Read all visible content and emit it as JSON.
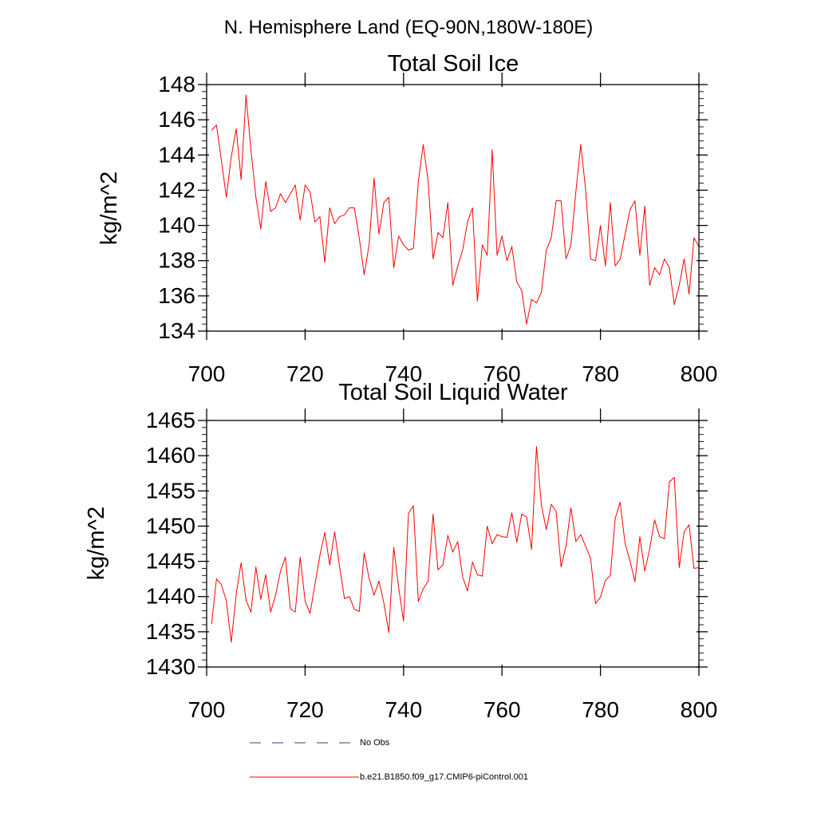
{
  "header": {
    "region_title": "N. Hemisphere Land (EQ-90N,180W-180E)"
  },
  "legend": {
    "obs_label": "No Obs",
    "model_label": "b.e21.B1850.f09_g17.CMIP6-piControl.001",
    "obs_color": "#3b3b8f",
    "model_color": "#ff0000"
  },
  "chart_data": [
    {
      "type": "line",
      "title": "Total Soil Ice",
      "xlabel": "",
      "ylabel": "kg/m^2",
      "xlim": [
        700,
        800
      ],
      "ylim": [
        134,
        148
      ],
      "xticks": [
        700,
        720,
        740,
        760,
        780,
        800
      ],
      "yticks": [
        134,
        136,
        138,
        140,
        142,
        144,
        146,
        148
      ],
      "series": [
        {
          "name": "b.e21.B1850.f09_g17.CMIP6-piControl.001",
          "color": "#ff0000",
          "x": [
            701,
            702,
            703,
            704,
            705,
            706,
            707,
            708,
            709,
            710,
            711,
            712,
            713,
            714,
            715,
            716,
            717,
            718,
            719,
            720,
            721,
            722,
            723,
            724,
            725,
            726,
            727,
            728,
            729,
            730,
            731,
            732,
            733,
            734,
            735,
            736,
            737,
            738,
            739,
            740,
            741,
            742,
            743,
            744,
            745,
            746,
            747,
            748,
            749,
            750,
            751,
            752,
            753,
            754,
            755,
            756,
            757,
            758,
            759,
            760,
            761,
            762,
            763,
            764,
            765,
            766,
            767,
            768,
            769,
            770,
            771,
            772,
            773,
            774,
            775,
            776,
            777,
            778,
            779,
            780,
            781,
            782,
            783,
            784,
            785,
            786,
            787,
            788,
            789,
            790,
            791,
            792,
            793,
            794,
            795,
            796,
            797,
            798,
            799,
            800
          ],
          "values": [
            145.4,
            145.7,
            143.7,
            141.6,
            143.9,
            145.5,
            142.6,
            147.4,
            144.3,
            141.6,
            139.8,
            142.5,
            140.8,
            141.0,
            141.8,
            141.3,
            141.8,
            142.3,
            140.3,
            142.3,
            141.9,
            140.2,
            140.5,
            137.9,
            141.0,
            140.1,
            140.5,
            140.6,
            141.0,
            141.0,
            139.3,
            137.2,
            138.9,
            142.7,
            139.5,
            141.3,
            141.6,
            137.6,
            139.4,
            138.9,
            138.6,
            138.7,
            142.5,
            144.6,
            142.5,
            138.1,
            139.6,
            139.3,
            141.3,
            136.6,
            137.7,
            138.6,
            140.2,
            141.0,
            135.7,
            138.9,
            138.3,
            144.3,
            138.3,
            139.4,
            138.0,
            138.8,
            136.8,
            136.3,
            134.4,
            135.8,
            135.6,
            136.2,
            138.6,
            139.3,
            141.4,
            141.4,
            138.1,
            138.9,
            141.9,
            144.6,
            142.0,
            138.1,
            138.0,
            140.0,
            137.7,
            141.3,
            137.7,
            138.1,
            139.5,
            140.9,
            141.4,
            138.3,
            141.1,
            136.6,
            137.6,
            137.2,
            138.1,
            137.6,
            135.5,
            136.6,
            138.1,
            136.1,
            139.3,
            138.8
          ]
        }
      ]
    },
    {
      "type": "line",
      "title": "Total Soil Liquid Water",
      "xlabel": "",
      "ylabel": "kg/m^2",
      "xlim": [
        700,
        800
      ],
      "ylim": [
        1430,
        1465
      ],
      "xticks": [
        700,
        720,
        740,
        760,
        780,
        800
      ],
      "yticks": [
        1430,
        1435,
        1440,
        1445,
        1450,
        1455,
        1460,
        1465
      ],
      "series": [
        {
          "name": "b.e21.B1850.f09_g17.CMIP6-piControl.001",
          "color": "#ff0000",
          "x": [
            701,
            702,
            703,
            704,
            705,
            706,
            707,
            708,
            709,
            710,
            711,
            712,
            713,
            714,
            715,
            716,
            717,
            718,
            719,
            720,
            721,
            722,
            723,
            724,
            725,
            726,
            727,
            728,
            729,
            730,
            731,
            732,
            733,
            734,
            735,
            736,
            737,
            738,
            739,
            740,
            741,
            742,
            743,
            744,
            745,
            746,
            747,
            748,
            749,
            750,
            751,
            752,
            753,
            754,
            755,
            756,
            757,
            758,
            759,
            760,
            761,
            762,
            763,
            764,
            765,
            766,
            767,
            768,
            769,
            770,
            771,
            772,
            773,
            774,
            775,
            776,
            777,
            778,
            779,
            780,
            781,
            782,
            783,
            784,
            785,
            786,
            787,
            788,
            789,
            790,
            791,
            792,
            793,
            794,
            795,
            796,
            797,
            798,
            799,
            800
          ],
          "values": [
            1436.1,
            1442.5,
            1441.7,
            1439.4,
            1433.5,
            1440.3,
            1444.8,
            1439.5,
            1437.8,
            1444.2,
            1439.6,
            1443.1,
            1437.8,
            1440.2,
            1443.6,
            1445.6,
            1438.3,
            1437.8,
            1445.6,
            1439.4,
            1437.6,
            1441.7,
            1445.8,
            1449.1,
            1444.5,
            1449.2,
            1444.3,
            1439.7,
            1440.0,
            1438.2,
            1437.9,
            1446.2,
            1442.6,
            1440.2,
            1442.2,
            1439.1,
            1434.9,
            1447.0,
            1441.3,
            1436.5,
            1451.8,
            1452.9,
            1439.3,
            1441.1,
            1442.2,
            1451.7,
            1443.8,
            1444.5,
            1448.7,
            1446.3,
            1447.8,
            1442.8,
            1440.8,
            1444.9,
            1443.1,
            1442.9,
            1450.0,
            1447.5,
            1448.8,
            1448.5,
            1448.4,
            1451.9,
            1447.7,
            1451.7,
            1451.3,
            1446.7,
            1461.3,
            1453.0,
            1449.5,
            1453.1,
            1452.1,
            1444.2,
            1447.2,
            1452.6,
            1447.8,
            1448.8,
            1447.1,
            1445.4,
            1439.0,
            1439.9,
            1442.3,
            1443.0,
            1451.1,
            1453.4,
            1447.5,
            1445.1,
            1442.1,
            1448.5,
            1443.6,
            1446.8,
            1450.9,
            1448.5,
            1448.2,
            1456.3,
            1456.9,
            1444.1,
            1449.2,
            1450.2,
            1444.0,
            1444.1
          ]
        }
      ]
    }
  ]
}
